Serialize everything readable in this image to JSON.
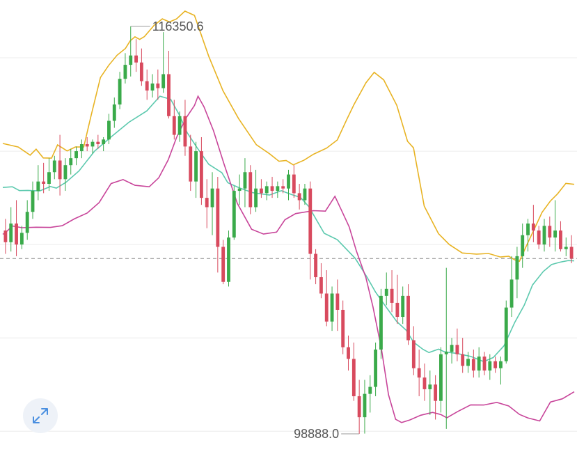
{
  "chart_data": {
    "type": "candlestick",
    "title": "",
    "indicator": "Bollinger Bands",
    "ylim": [
      98500,
      117000
    ],
    "max_label": "116350.6",
    "min_label": "98888.0",
    "current_price_guide": 106400,
    "colors": {
      "up": "#3aaa4a",
      "down": "#d84a5e",
      "upper": "#e8b323",
      "middle": "#5cc9ae",
      "lower": "#c8459a",
      "grid": "#ececec",
      "dashed": "#888888"
    },
    "candles": [
      [
        107600,
        108100,
        106600,
        107100
      ],
      [
        107100,
        108600,
        106700,
        107900
      ],
      [
        107900,
        108900,
        106500,
        107000
      ],
      [
        107000,
        107800,
        106800,
        107500
      ],
      [
        107500,
        108900,
        107200,
        108400
      ],
      [
        108400,
        109700,
        108100,
        109300
      ],
      [
        109300,
        110400,
        108900,
        109700
      ],
      [
        109700,
        110500,
        109200,
        109600
      ],
      [
        109600,
        110700,
        109300,
        110100
      ],
      [
        110100,
        110800,
        109800,
        110600
      ],
      [
        110600,
        111700,
        109100,
        109800
      ],
      [
        109800,
        110700,
        109300,
        110400
      ],
      [
        110400,
        111100,
        110000,
        110700
      ],
      [
        110700,
        111200,
        110400,
        111000
      ],
      [
        111000,
        111500,
        110700,
        111300
      ],
      [
        111300,
        111600,
        111000,
        111200
      ],
      [
        111200,
        111500,
        110900,
        111400
      ],
      [
        111400,
        111700,
        111100,
        111300
      ],
      [
        111300,
        111600,
        111000,
        111500
      ],
      [
        111500,
        112600,
        111300,
        112300
      ],
      [
        112300,
        113300,
        112000,
        113000
      ],
      [
        113000,
        114400,
        112800,
        114100
      ],
      [
        114100,
        115200,
        113900,
        114700
      ],
      [
        114700,
        116350,
        114200,
        115100
      ],
      [
        115100,
        115800,
        114400,
        114800
      ],
      [
        114800,
        115400,
        113800,
        114000
      ],
      [
        114000,
        114500,
        113200,
        113600
      ],
      [
        113600,
        114300,
        113300,
        113900
      ],
      [
        113900,
        114500,
        113200,
        113700
      ],
      [
        113700,
        116100,
        113500,
        114300
      ],
      [
        114300,
        115300,
        112400,
        112500
      ],
      [
        112500,
        113200,
        111500,
        111700
      ],
      [
        111700,
        112700,
        111400,
        112500
      ],
      [
        112500,
        113200,
        110800,
        111200
      ],
      [
        111200,
        111700,
        109300,
        109700
      ],
      [
        109700,
        111400,
        109000,
        111000
      ],
      [
        111000,
        111600,
        108700,
        109000
      ],
      [
        109000,
        109800,
        107700,
        108600
      ],
      [
        108600,
        110100,
        107400,
        109400
      ],
      [
        109400,
        109900,
        105800,
        106900
      ],
      [
        106900,
        107200,
        105300,
        105400
      ],
      [
        105400,
        107600,
        105200,
        107300
      ],
      [
        107300,
        109500,
        107200,
        109300
      ],
      [
        109300,
        110000,
        108700,
        109400
      ],
      [
        109400,
        110700,
        108600,
        110100
      ],
      [
        110100,
        110400,
        108300,
        108600
      ],
      [
        108600,
        110200,
        108400,
        109400
      ],
      [
        109400,
        109800,
        109000,
        109200
      ],
      [
        109200,
        109700,
        108900,
        109500
      ],
      [
        109500,
        109900,
        109000,
        109300
      ],
      [
        109300,
        109700,
        109000,
        109500
      ],
      [
        109500,
        109800,
        109200,
        109400
      ],
      [
        109400,
        110200,
        108900,
        110000
      ],
      [
        110000,
        110400,
        109000,
        109200
      ],
      [
        109200,
        109600,
        108500,
        108900
      ],
      [
        108900,
        109600,
        108700,
        109400
      ],
      [
        109400,
        109700,
        105500,
        106600
      ],
      [
        106600,
        106800,
        105300,
        105600
      ],
      [
        105600,
        106200,
        104700,
        104900
      ],
      [
        104900,
        105900,
        103500,
        103700
      ],
      [
        103700,
        105200,
        103300,
        104900
      ],
      [
        104900,
        105500,
        103300,
        104200
      ],
      [
        104200,
        104600,
        102300,
        102600
      ],
      [
        102600,
        103100,
        101600,
        102100
      ],
      [
        102100,
        102800,
        100300,
        100500
      ],
      [
        100500,
        101200,
        98888,
        99600
      ],
      [
        99600,
        101200,
        98900,
        100600
      ],
      [
        100600,
        101400,
        99800,
        100900
      ],
      [
        100900,
        102800,
        100500,
        102500
      ],
      [
        102500,
        105100,
        102100,
        104800
      ],
      [
        104800,
        105800,
        104400,
        105100
      ],
      [
        105100,
        105900,
        104100,
        104500
      ],
      [
        104500,
        105700,
        103600,
        103900
      ],
      [
        103900,
        105200,
        103600,
        104800
      ],
      [
        104800,
        105300,
        102700,
        102900
      ],
      [
        102900,
        103500,
        101400,
        101700
      ],
      [
        101700,
        102500,
        100500,
        101300
      ],
      [
        101300,
        101900,
        100300,
        100800
      ],
      [
        100800,
        101600,
        99700,
        101000
      ],
      [
        101000,
        101400,
        99500,
        100300
      ],
      [
        100300,
        102600,
        99800,
        102300
      ],
      [
        102300,
        106000,
        99100,
        102400
      ],
      [
        102400,
        103000,
        101900,
        102700
      ],
      [
        102700,
        103400,
        102000,
        102300
      ],
      [
        102300,
        103000,
        101500,
        101800
      ],
      [
        101800,
        102400,
        101500,
        102100
      ],
      [
        102100,
        102500,
        101300,
        101600
      ],
      [
        101600,
        102600,
        101300,
        102200
      ],
      [
        102200,
        102400,
        101400,
        101600
      ],
      [
        101600,
        102300,
        101200,
        102000
      ],
      [
        102000,
        102200,
        101500,
        101700
      ],
      [
        101700,
        102200,
        101000,
        102000
      ],
      [
        102000,
        104600,
        101900,
        104300
      ],
      [
        104300,
        106500,
        103900,
        105500
      ],
      [
        105500,
        106900,
        104700,
        106500
      ],
      [
        106500,
        107900,
        106000,
        107400
      ],
      [
        107400,
        108100,
        106700,
        107900
      ],
      [
        107900,
        108700,
        107100,
        107600
      ],
      [
        107600,
        107800,
        106800,
        107000
      ],
      [
        107000,
        108100,
        106700,
        107800
      ],
      [
        107800,
        108200,
        106900,
        107300
      ],
      [
        107300,
        108900,
        106700,
        107600
      ],
      [
        107600,
        108000,
        106700,
        106800
      ],
      [
        106800,
        107300,
        106500,
        106900
      ],
      [
        106900,
        107400,
        106200,
        106400
      ]
    ],
    "upper_band": [
      [
        0,
        111330
      ],
      [
        13,
        111178
      ],
      [
        23,
        110830
      ],
      [
        28,
        111085
      ],
      [
        34,
        110711
      ],
      [
        41,
        110700
      ],
      [
        46,
        111267
      ],
      [
        54,
        111011
      ],
      [
        61,
        111178
      ],
      [
        68,
        111178
      ],
      [
        74,
        112489
      ],
      [
        82,
        114156
      ],
      [
        89,
        114678
      ],
      [
        96,
        115111
      ],
      [
        103,
        115400
      ],
      [
        107,
        115726
      ],
      [
        111,
        115900
      ],
      [
        115,
        115789
      ],
      [
        119,
        115911
      ],
      [
        127,
        116385
      ],
      [
        134,
        116670
      ],
      [
        140,
        116537
      ],
      [
        146,
        116670
      ],
      [
        153,
        117000
      ],
      [
        161,
        116819
      ],
      [
        173,
        115067
      ],
      [
        185,
        113585
      ],
      [
        198,
        112400
      ],
      [
        213,
        111278
      ],
      [
        224,
        110893
      ],
      [
        232,
        110567
      ],
      [
        238,
        110600
      ],
      [
        244,
        110415
      ],
      [
        253,
        110611
      ],
      [
        261,
        110867
      ],
      [
        272,
        111130
      ],
      [
        281,
        111481
      ],
      [
        289,
        112363
      ],
      [
        295,
        113000
      ],
      [
        305,
        113926
      ],
      [
        312,
        114378
      ],
      [
        320,
        114056
      ],
      [
        331,
        112963
      ],
      [
        340,
        111422
      ],
      [
        345,
        111144
      ],
      [
        354,
        108644
      ],
      [
        366,
        107467
      ],
      [
        375,
        107000
      ],
      [
        386,
        106637
      ],
      [
        398,
        106589
      ],
      [
        408,
        106615
      ],
      [
        418,
        106463
      ],
      [
        425,
        106500
      ],
      [
        430,
        106344
      ],
      [
        434,
        106285
      ],
      [
        441,
        107074
      ],
      [
        447,
        107722
      ],
      [
        453,
        108381
      ],
      [
        460,
        108867
      ],
      [
        466,
        109174
      ],
      [
        473,
        109622
      ],
      [
        480,
        109578
      ]
    ],
    "middle_band": [
      [
        0,
        109444
      ],
      [
        8,
        109474
      ],
      [
        14,
        109311
      ],
      [
        21,
        109320
      ],
      [
        31,
        109296
      ],
      [
        40,
        109485
      ],
      [
        45,
        109415
      ],
      [
        53,
        109667
      ],
      [
        64,
        110152
      ],
      [
        77,
        110996
      ],
      [
        92,
        111656
      ],
      [
        106,
        112241
      ],
      [
        121,
        112726
      ],
      [
        132,
        113356
      ],
      [
        141,
        113222
      ],
      [
        148,
        112585
      ],
      [
        155,
        111785
      ],
      [
        163,
        111163
      ],
      [
        173,
        110437
      ],
      [
        184,
        110081
      ],
      [
        189,
        109648
      ],
      [
        199,
        109422
      ],
      [
        210,
        109222
      ],
      [
        224,
        109119
      ],
      [
        234,
        109304
      ],
      [
        243,
        109135
      ],
      [
        250,
        109019
      ],
      [
        257,
        108626
      ],
      [
        270,
        107481
      ],
      [
        281,
        107207
      ],
      [
        296,
        106411
      ],
      [
        306,
        105600
      ],
      [
        313,
        104970
      ],
      [
        322,
        104319
      ],
      [
        331,
        103696
      ],
      [
        339,
        103322
      ],
      [
        345,
        102819
      ],
      [
        353,
        102507
      ],
      [
        358,
        102370
      ],
      [
        366,
        102515
      ],
      [
        371,
        102404
      ],
      [
        381,
        102337
      ],
      [
        393,
        102207
      ],
      [
        404,
        101982
      ],
      [
        412,
        102157
      ],
      [
        421,
        102659
      ],
      [
        430,
        103659
      ],
      [
        438,
        104400
      ],
      [
        445,
        105267
      ],
      [
        454,
        105844
      ],
      [
        461,
        106141
      ],
      [
        468,
        106244
      ],
      [
        475,
        106311
      ],
      [
        480,
        106300
      ]
    ],
    "lower_band": [
      [
        0,
        107437
      ],
      [
        3,
        107544
      ],
      [
        8,
        107796
      ],
      [
        16,
        107719
      ],
      [
        28,
        107741
      ],
      [
        40,
        107733
      ],
      [
        50,
        107807
      ],
      [
        60,
        108096
      ],
      [
        71,
        108352
      ],
      [
        81,
        108800
      ],
      [
        91,
        109611
      ],
      [
        101,
        109781
      ],
      [
        111,
        109537
      ],
      [
        123,
        109474
      ],
      [
        131,
        109859
      ],
      [
        139,
        110630
      ],
      [
        146,
        111589
      ],
      [
        154,
        112426
      ],
      [
        161,
        112956
      ],
      [
        164,
        113356
      ],
      [
        169,
        112896
      ],
      [
        177,
        111881
      ],
      [
        186,
        110430
      ],
      [
        197,
        108759
      ],
      [
        209,
        107656
      ],
      [
        219,
        107448
      ],
      [
        230,
        107533
      ],
      [
        237,
        108063
      ],
      [
        246,
        108326
      ],
      [
        261,
        108452
      ],
      [
        271,
        108430
      ],
      [
        276,
        108830
      ],
      [
        279,
        109067
      ],
      [
        284,
        108519
      ],
      [
        291,
        107756
      ],
      [
        297,
        106726
      ],
      [
        305,
        105585
      ],
      [
        311,
        104326
      ],
      [
        318,
        102552
      ],
      [
        324,
        100563
      ],
      [
        330,
        99511
      ],
      [
        335,
        99370
      ],
      [
        342,
        99485
      ],
      [
        351,
        99685
      ],
      [
        361,
        99807
      ],
      [
        368,
        99715
      ],
      [
        373,
        99574
      ],
      [
        382,
        99841
      ],
      [
        393,
        100130
      ],
      [
        404,
        100122
      ],
      [
        415,
        100237
      ],
      [
        425,
        100081
      ],
      [
        434,
        99719
      ],
      [
        441,
        99570
      ],
      [
        451,
        99441
      ],
      [
        460,
        100252
      ],
      [
        470,
        100389
      ],
      [
        480,
        100689
      ]
    ]
  }
}
